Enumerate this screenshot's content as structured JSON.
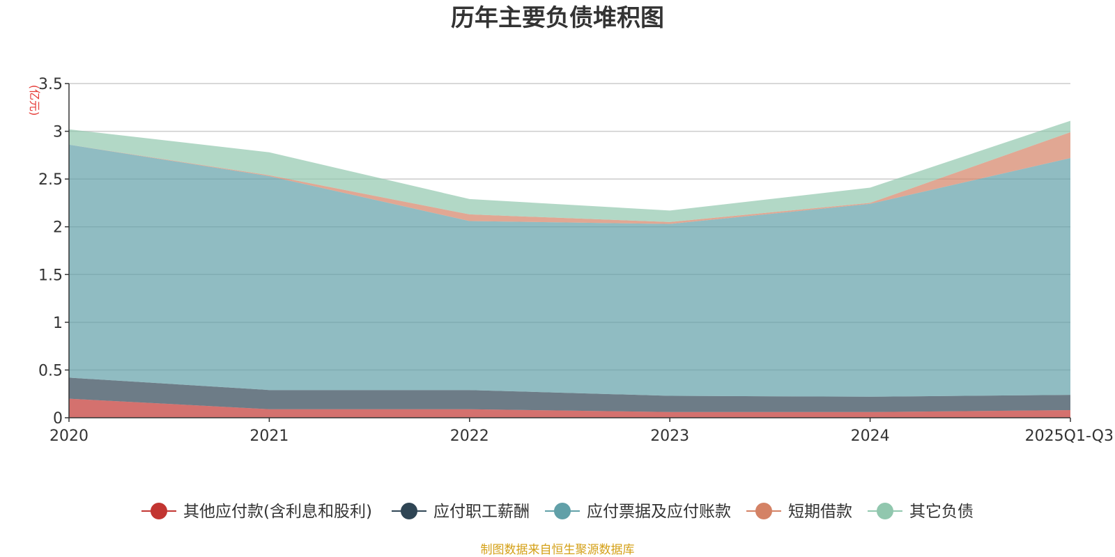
{
  "chart_data": {
    "type": "area",
    "stacked": true,
    "title": "历年主要负债堆积图",
    "unit_label": "(亿元)",
    "categories": [
      "2020",
      "2021",
      "2022",
      "2023",
      "2024",
      "2025Q1-Q3"
    ],
    "ylim": [
      0,
      3.5
    ],
    "yticks": [
      "0",
      "0.5",
      "1",
      "1.5",
      "2",
      "2.5",
      "3",
      "3.5"
    ],
    "grid": true,
    "legend_position": "bottom",
    "series": [
      {
        "name": "其他应付款(含利息和股利)",
        "color": "#c23531",
        "values": [
          0.2,
          0.09,
          0.09,
          0.06,
          0.06,
          0.08
        ]
      },
      {
        "name": "应付职工薪酬",
        "color": "#2f4554",
        "values": [
          0.22,
          0.2,
          0.2,
          0.17,
          0.16,
          0.16
        ]
      },
      {
        "name": "应付票据及应付账款",
        "color": "#61a0a8",
        "values": [
          2.44,
          2.24,
          1.77,
          1.8,
          2.02,
          2.48
        ]
      },
      {
        "name": "短期借款",
        "color": "#d48265",
        "values": [
          0.0,
          0.01,
          0.07,
          0.02,
          0.01,
          0.27
        ]
      },
      {
        "name": "其它负债",
        "color": "#91c7ae",
        "values": [
          0.16,
          0.24,
          0.16,
          0.12,
          0.16,
          0.12
        ]
      }
    ],
    "source_note": "制图数据来自恒生聚源数据库"
  }
}
